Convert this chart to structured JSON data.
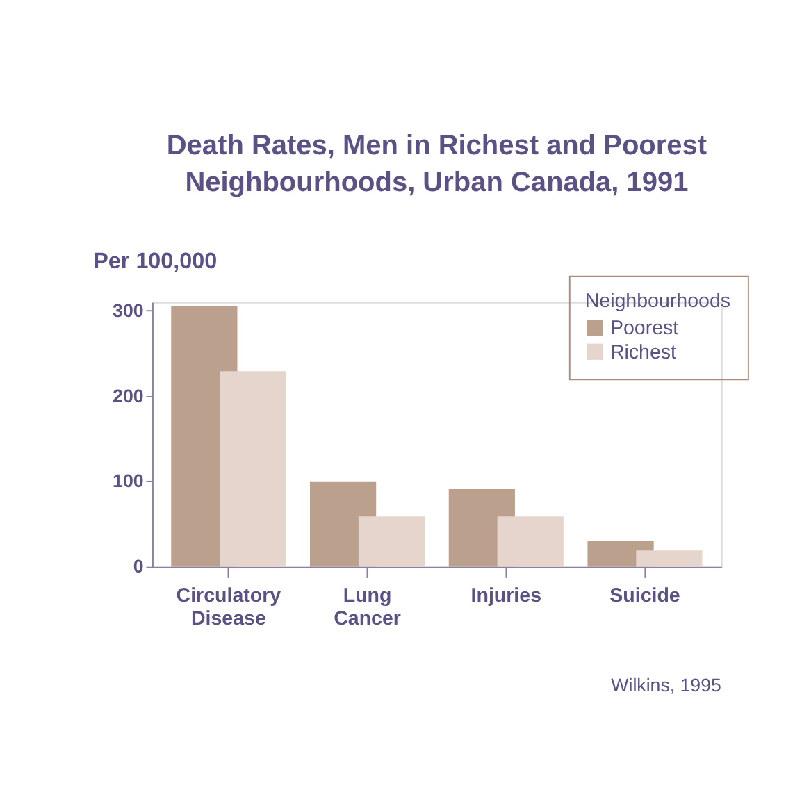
{
  "chart_data": {
    "type": "bar",
    "title": "Death Rates, Men in Richest and Poorest Neighbourhoods, Urban Canada, 1991",
    "ylabel": "Per 100,000",
    "legend_title": "Neighbourhoods",
    "categories": [
      "Circulatory Disease",
      "Lung Cancer",
      "Injuries",
      "Suicide"
    ],
    "series": [
      {
        "name": "Poorest",
        "color": "#bba08e",
        "values": [
          305,
          100,
          91,
          30
        ]
      },
      {
        "name": "Richest",
        "color": "#e6d5cc",
        "values": [
          229,
          59,
          59,
          19
        ]
      }
    ],
    "ylim": [
      0,
      310
    ],
    "yticks": [
      0,
      100,
      200,
      300
    ],
    "grid": false,
    "legend": "top right",
    "annotations": [
      "Wilkins, 1995"
    ]
  }
}
